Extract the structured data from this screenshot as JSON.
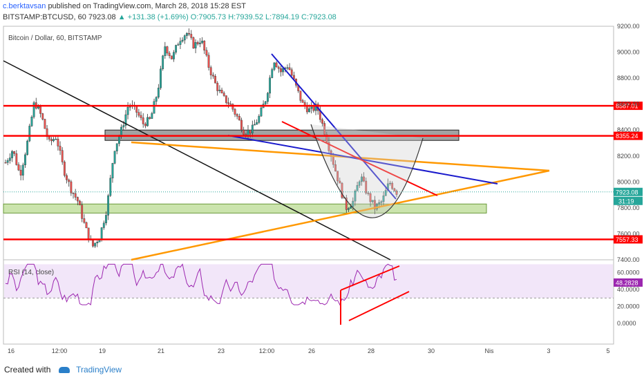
{
  "header": {
    "author": "c.berktavsan",
    "published_text": "published on TradingView.com, March 28, 2018 15:28 EST",
    "symbol": "BITSTAMP:BTCUSD, 60",
    "last": "7923.08",
    "change": "▲ +131.38 (+1.69%)",
    "ohlc": "O:7905.73 H:7939.52 L:7894.19 C:7923.08"
  },
  "footer": {
    "created_with": "Created with",
    "brand": "TradingView"
  },
  "chart_data": [
    {
      "type": "candlestick",
      "title": "Bitcoin / Dollar, 60, BITSTAMP",
      "ylim": [
        7400,
        9200
      ],
      "y_ticks": [
        7400,
        7600,
        7800,
        8000,
        8200,
        8400,
        8600,
        8800,
        9000,
        9200
      ],
      "y_tick_labels": [
        "7400.00",
        "7600.00",
        "7800.00",
        "8000.00",
        "8200.00",
        "8400.00",
        "8600.00",
        "8800.00",
        "9000.00",
        "9200.00"
      ],
      "x_tick_labels": [
        "16",
        "12:00",
        "19",
        "21",
        "23",
        "12:00",
        "26",
        "28",
        "30",
        "Nis",
        "3",
        "5"
      ],
      "close_path": [
        8150,
        8250,
        8050,
        8300,
        8620,
        8500,
        8300,
        8350,
        8100,
        7950,
        7850,
        7650,
        7500,
        7580,
        7800,
        8250,
        8400,
        8600,
        8550,
        8450,
        8480,
        8700,
        9050,
        8950,
        9100,
        9150,
        9050,
        9100,
        8900,
        8750,
        8650,
        8600,
        8500,
        8380,
        8400,
        8500,
        8650,
        8950,
        8850,
        8900,
        8750,
        8600,
        8550,
        8580,
        8400,
        8200,
        8000,
        7800,
        7850,
        8050,
        7900,
        7800,
        7850,
        8000,
        7923
      ],
      "horizontal_levels": [
        {
          "label": "8587.01",
          "value": 8587.01,
          "color": "#ff0000"
        },
        {
          "label": "8355.24",
          "value": 8355.24,
          "color": "#ff0000"
        },
        {
          "label": "7557.33",
          "value": 7557.33,
          "color": "#ff0000"
        }
      ],
      "current_price": {
        "label": "7923.08",
        "value": 7923.08,
        "color": "#26a69a"
      },
      "countdown_label": "31:19",
      "zones": [
        {
          "from": 8320,
          "to": 8400,
          "color": "#555555"
        },
        {
          "from": 7760,
          "to": 7830,
          "color": "#8bc34a"
        }
      ],
      "colors": {
        "up": "#26a69a",
        "down": "#ef5350",
        "wick": "#333333"
      }
    },
    {
      "type": "line",
      "title": "RSI (14, close)",
      "ylim": [
        0,
        72
      ],
      "y_ticks": [
        0,
        20,
        40,
        60
      ],
      "y_tick_labels": [
        "0.0000",
        "20.0000",
        "40.0000",
        "60.0000"
      ],
      "current_value": {
        "label": "48.2828",
        "value": 48.2828,
        "color": "#9c27b0"
      },
      "band": [
        30,
        70
      ],
      "colors": {
        "line": "#9c27b0",
        "band": "#e9d5f5"
      }
    }
  ]
}
